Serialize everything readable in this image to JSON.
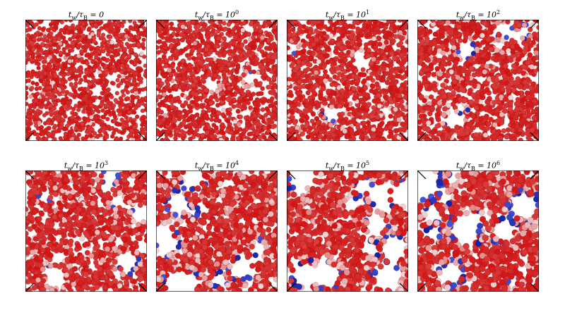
{
  "panels": [
    {
      "prefix": "t",
      "sub_w": "w",
      "mid": "/τ",
      "sub_b": "B",
      "eq": " = ",
      "base": "0",
      "exp": ""
    },
    {
      "prefix": "t",
      "sub_w": "w",
      "mid": "/τ",
      "sub_b": "B",
      "eq": " = ",
      "base": "10",
      "exp": "0"
    },
    {
      "prefix": "t",
      "sub_w": "w",
      "mid": "/τ",
      "sub_b": "B",
      "eq": " = ",
      "base": "10",
      "exp": "1"
    },
    {
      "prefix": "t",
      "sub_w": "w",
      "mid": "/τ",
      "sub_b": "B",
      "eq": " = ",
      "base": "10",
      "exp": "2"
    },
    {
      "prefix": "t",
      "sub_w": "w",
      "mid": "/τ",
      "sub_b": "B",
      "eq": " = ",
      "base": "10",
      "exp": "3"
    },
    {
      "prefix": "t",
      "sub_w": "w",
      "mid": "/τ",
      "sub_b": "B",
      "eq": " = ",
      "base": "10",
      "exp": "4"
    },
    {
      "prefix": "t",
      "sub_w": "w",
      "mid": "/τ",
      "sub_b": "B",
      "eq": " = ",
      "base": "10",
      "exp": "5"
    },
    {
      "prefix": "t",
      "sub_w": "w",
      "mid": "/τ",
      "sub_b": "B",
      "eq": " = ",
      "base": "10",
      "exp": "6"
    }
  ],
  "colors": {
    "particle_high": "#d41414",
    "particle_mid": "#e58a8a",
    "particle_low": "#f3d6d6",
    "particle_blue": "#4455dd",
    "particle_deep_blue": "#1122aa",
    "box_edge": "#000000"
  }
}
